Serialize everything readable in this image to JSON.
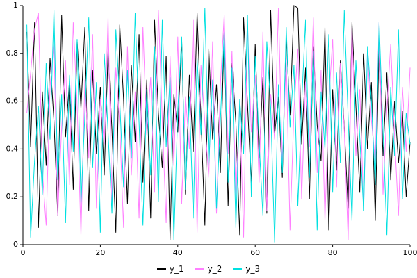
{
  "figure": {
    "background": "#ffffff",
    "axis_color": "#000000"
  },
  "legend": {
    "position": "bottom-center",
    "entries": [
      {
        "label": "y_1",
        "color": "#000000"
      },
      {
        "label": "y_2",
        "color": "#ff80ff"
      },
      {
        "label": "y_3",
        "color": "#00e0e0"
      }
    ]
  },
  "chart_data": {
    "type": "line",
    "title": "",
    "xlabel": "",
    "ylabel": "",
    "xlim": [
      0,
      100
    ],
    "ylim": [
      0,
      1
    ],
    "grid": false,
    "legend_position": "bottom",
    "xticks": [
      0,
      20,
      40,
      60,
      80,
      100
    ],
    "xtick_labels": [
      "0",
      "20",
      "40",
      "60",
      "80",
      "100"
    ],
    "yticks": [
      0,
      0.2,
      0.4,
      0.6,
      0.8,
      1
    ],
    "ytick_labels": [
      "0",
      "0.2",
      "0.4",
      "0.6",
      "0.8",
      "1"
    ],
    "x": {
      "start": 1,
      "end": 100,
      "count": 100
    },
    "series": [
      {
        "name": "y_1",
        "color": "#000000",
        "values": [
          0.89,
          0.41,
          0.93,
          0.07,
          0.64,
          0.33,
          0.78,
          0.52,
          0.12,
          0.96,
          0.45,
          0.68,
          0.23,
          0.85,
          0.57,
          0.91,
          0.14,
          0.73,
          0.38,
          0.66,
          0.29,
          0.81,
          0.48,
          0.05,
          0.92,
          0.61,
          0.17,
          0.75,
          0.43,
          0.88,
          0.26,
          0.69,
          0.11,
          0.94,
          0.55,
          0.32,
          0.79,
          0.02,
          0.63,
          0.47,
          0.86,
          0.21,
          0.71,
          0.39,
          0.97,
          0.53,
          0.08,
          0.82,
          0.44,
          0.67,
          0.3,
          0.9,
          0.16,
          0.76,
          0.51,
          0.04,
          0.95,
          0.59,
          0.25,
          0.84,
          0.36,
          0.7,
          0.13,
          0.98,
          0.46,
          0.62,
          0.28,
          0.87,
          0.54,
          1.0,
          0.99,
          0.42,
          0.74,
          0.19,
          0.83,
          0.5,
          0.35,
          0.91,
          0.06,
          0.65,
          0.31,
          0.77,
          0.49,
          0.15,
          0.93,
          0.58,
          0.22,
          0.8,
          0.4,
          0.68,
          0.1,
          0.85,
          0.37,
          0.72,
          0.27,
          0.6,
          0.34,
          0.56,
          0.2,
          0.43
        ]
      },
      {
        "name": "y_2",
        "color": "#ff80ff",
        "values": [
          0.55,
          0.72,
          0.9,
          0.97,
          0.31,
          0.08,
          0.66,
          0.84,
          0.12,
          0.49,
          0.77,
          0.25,
          0.93,
          0.58,
          0.04,
          0.69,
          0.36,
          0.88,
          0.15,
          0.61,
          0.42,
          0.95,
          0.18,
          0.74,
          0.5,
          0.07,
          0.83,
          0.29,
          0.64,
          0.11,
          0.91,
          0.46,
          0.7,
          0.22,
          0.98,
          0.53,
          0.09,
          0.79,
          0.33,
          0.87,
          0.17,
          0.62,
          0.4,
          0.94,
          0.05,
          0.75,
          0.51,
          0.28,
          0.85,
          0.13,
          0.67,
          0.96,
          0.38,
          0.81,
          0.2,
          0.59,
          0.03,
          0.92,
          0.47,
          0.71,
          0.26,
          0.89,
          0.14,
          0.63,
          0.44,
          0.99,
          0.34,
          0.78,
          0.06,
          0.56,
          0.82,
          0.19,
          0.68,
          0.41,
          0.95,
          0.3,
          0.73,
          0.1,
          0.6,
          0.86,
          0.24,
          0.76,
          0.48,
          0.02,
          0.91,
          0.37,
          0.65,
          0.16,
          0.8,
          0.52,
          0.35,
          0.93,
          0.21,
          0.57,
          0.84,
          0.45,
          0.12,
          0.66,
          0.39,
          0.74
        ]
      },
      {
        "name": "y_3",
        "color": "#00e0e0",
        "values": [
          0.92,
          0.03,
          0.35,
          0.58,
          0.21,
          0.76,
          0.44,
          0.98,
          0.27,
          0.63,
          0.09,
          0.71,
          0.39,
          0.86,
          0.17,
          0.54,
          0.95,
          0.32,
          0.68,
          0.05,
          0.8,
          0.47,
          0.13,
          0.9,
          0.6,
          0.24,
          0.73,
          0.36,
          0.97,
          0.51,
          0.08,
          0.65,
          0.29,
          0.83,
          0.18,
          0.94,
          0.41,
          0.7,
          0.02,
          0.56,
          0.87,
          0.23,
          0.62,
          0.11,
          0.78,
          0.46,
          0.99,
          0.33,
          0.69,
          0.15,
          0.52,
          0.89,
          0.26,
          0.74,
          0.07,
          0.61,
          0.38,
          0.96,
          0.2,
          0.79,
          0.43,
          0.12,
          0.85,
          0.57,
          0.01,
          0.67,
          0.3,
          0.91,
          0.49,
          0.75,
          0.16,
          0.59,
          0.94,
          0.28,
          0.81,
          0.06,
          0.64,
          0.4,
          0.88,
          0.22,
          0.72,
          0.34,
          0.98,
          0.53,
          0.1,
          0.77,
          0.45,
          0.14,
          0.83,
          0.6,
          0.25,
          0.93,
          0.48,
          0.04,
          0.66,
          0.37,
          0.9,
          0.19,
          0.55,
          0.42
        ]
      }
    ]
  }
}
